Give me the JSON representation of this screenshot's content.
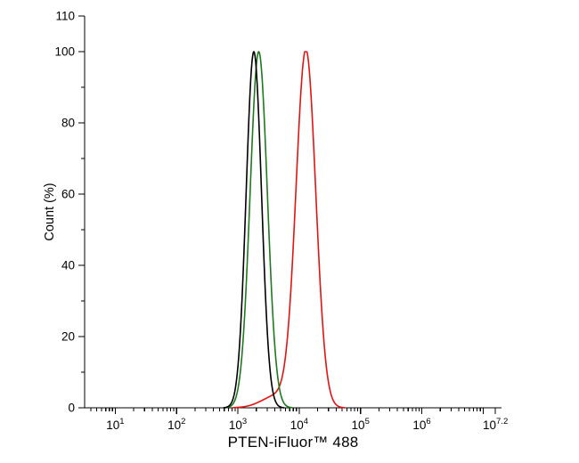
{
  "figure": {
    "background": "#ffffff"
  },
  "chart": {
    "xlabel": "PTEN-iFluor™ 488",
    "ylabel": "Count (%)",
    "axis_color": "#000000",
    "x_axis": {
      "scale": "log10",
      "display_range_log10": [
        0.5,
        7.3
      ],
      "major_tick_exponents": [
        1,
        2,
        3,
        4,
        5,
        6,
        7,
        7.2
      ],
      "labeled_ticks": [
        {
          "u": 1,
          "base": "10",
          "exp": "1"
        },
        {
          "u": 2,
          "base": "10",
          "exp": "2"
        },
        {
          "u": 3,
          "base": "10",
          "exp": "3"
        },
        {
          "u": 4,
          "base": "10",
          "exp": "4"
        },
        {
          "u": 5,
          "base": "10",
          "exp": "5"
        },
        {
          "u": 6,
          "base": "10",
          "exp": "6"
        },
        {
          "u": 7.2,
          "base": "10",
          "exp": "7.2"
        }
      ]
    },
    "y_axis": {
      "min": 0,
      "max": 110,
      "minor_step": 10,
      "major_step": 20,
      "labeled_ticks": [
        0,
        20,
        40,
        60,
        80,
        100,
        110
      ]
    }
  },
  "chart_data": {
    "type": "line",
    "title": "",
    "xlabel": "PTEN-iFluor™ 488",
    "ylabel": "Count (%)",
    "x_scale": "log10",
    "xlim_log10": [
      0.5,
      7.3
    ],
    "ylim": [
      0,
      110
    ],
    "grid": false,
    "legend": "none",
    "series": [
      {
        "name": "black-curve",
        "color": "#000000",
        "peak_x": 1800,
        "peak_log10": 3.26,
        "peak_y": 100,
        "sigma_log10": 0.125
      },
      {
        "name": "green-curve",
        "color": "#1d7a1d",
        "peak_x": 2200,
        "peak_log10": 3.34,
        "peak_y": 100,
        "sigma_log10": 0.14
      },
      {
        "name": "red-curve",
        "color": "#e51212",
        "peak_x": 13000,
        "peak_log10": 4.11,
        "peak_y": 100,
        "sigma_log10": 0.16,
        "shoulder": {
          "amp": 3.5,
          "mu_log10": 3.65,
          "sigma_log10": 0.25
        }
      }
    ]
  }
}
